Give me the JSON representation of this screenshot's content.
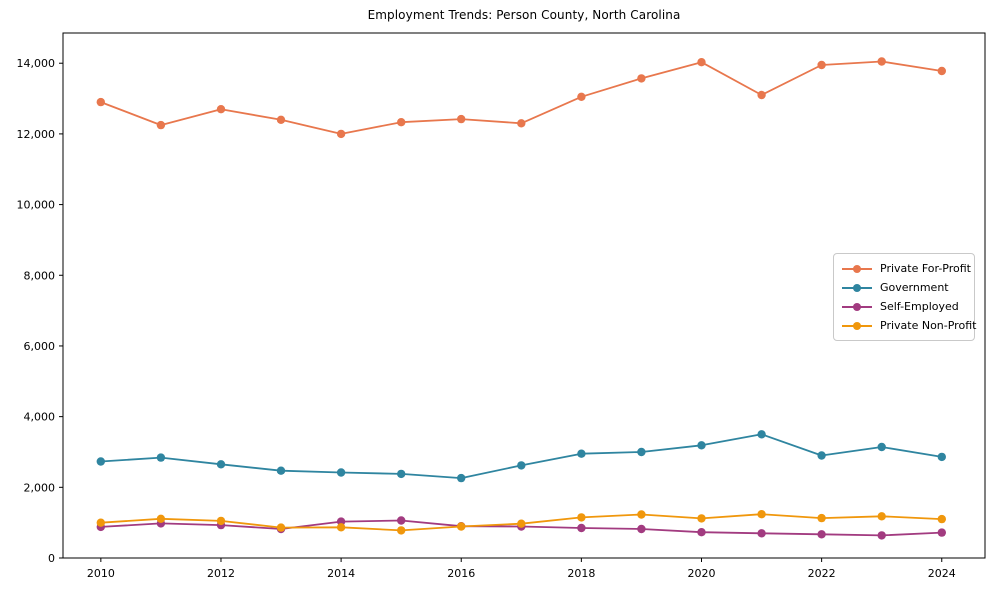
{
  "chart_data": {
    "type": "line",
    "title": "Employment Trends: Person County, North Carolina",
    "xlabel": "",
    "ylabel": "",
    "grid": false,
    "background": "#ffffff",
    "axis_color": "#000000",
    "legend_position": "right-inside",
    "x": [
      2010,
      2011,
      2012,
      2013,
      2014,
      2015,
      2016,
      2017,
      2018,
      2019,
      2020,
      2021,
      2022,
      2023,
      2024
    ],
    "series": [
      {
        "name": "Private For-Profit",
        "color": "#E8774D",
        "values": [
          12900,
          12250,
          12700,
          12400,
          12000,
          12330,
          12420,
          12300,
          13050,
          13570,
          14030,
          13100,
          13950,
          14050,
          13780
        ]
      },
      {
        "name": "Government",
        "color": "#2F85A0",
        "values": [
          2730,
          2840,
          2650,
          2470,
          2420,
          2380,
          2260,
          2620,
          2950,
          3000,
          3190,
          3500,
          2900,
          3140,
          2860
        ]
      },
      {
        "name": "Self-Employed",
        "color": "#A23B80",
        "values": [
          880,
          980,
          930,
          820,
          1030,
          1060,
          900,
          890,
          850,
          820,
          730,
          700,
          670,
          640,
          720
        ]
      },
      {
        "name": "Private Non-Profit",
        "color": "#F0970C",
        "values": [
          1000,
          1110,
          1050,
          860,
          870,
          780,
          890,
          970,
          1150,
          1230,
          1120,
          1240,
          1130,
          1180,
          1100
        ]
      }
    ],
    "xticks": {
      "values": [
        2010,
        2012,
        2014,
        2016,
        2018,
        2020,
        2022,
        2024
      ],
      "labels": [
        "2010",
        "2012",
        "2014",
        "2016",
        "2018",
        "2020",
        "2022",
        "2024"
      ]
    },
    "yticks": {
      "values": [
        0,
        2000,
        4000,
        6000,
        8000,
        10000,
        12000,
        14000
      ],
      "labels": [
        "0",
        "2,000",
        "4,000",
        "6,000",
        "8,000",
        "10,000",
        "12,000",
        "14,000"
      ]
    },
    "xlim": [
      2009.37,
      2024.72
    ],
    "ylim": [
      0,
      14855
    ]
  }
}
